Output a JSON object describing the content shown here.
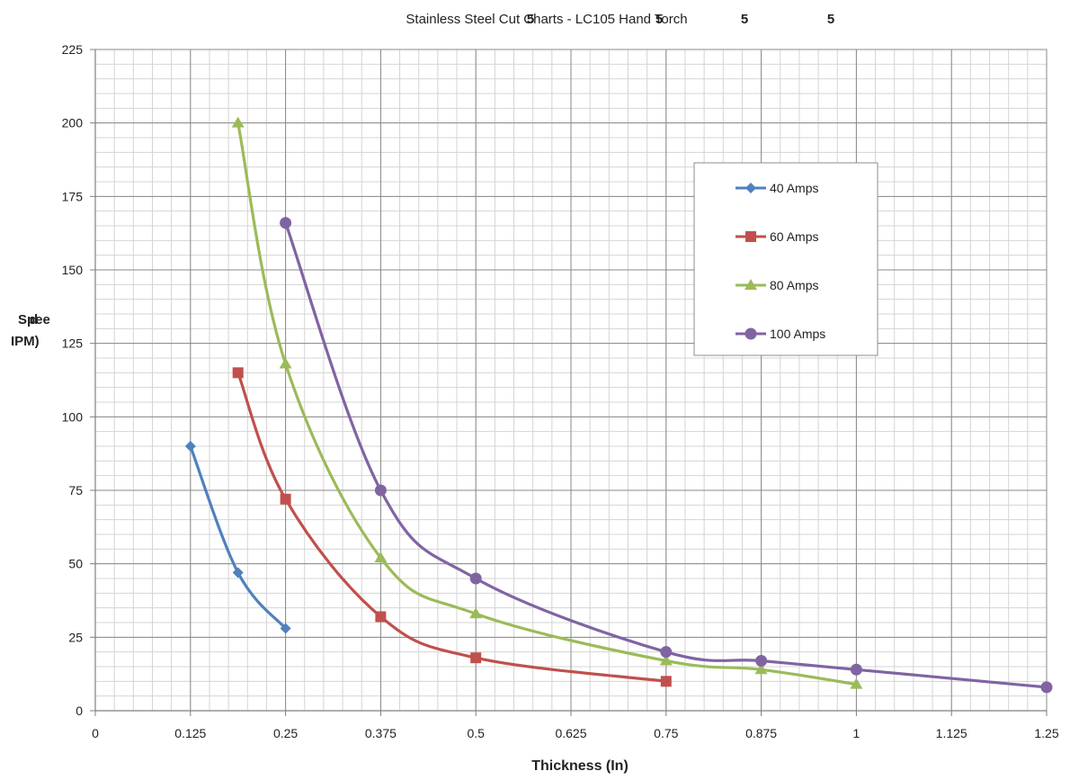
{
  "chart_data": {
    "type": "line",
    "title": "Stainless Steel Cut Charts - LC105 Hand Torch",
    "title_artifacts": [
      "5",
      "5",
      "5",
      "5"
    ],
    "xlabel": "Thickness (In)",
    "ylabel_line1": "Spee",
    "ylabel_line2": "d",
    "ylabel_line3": "IPM)",
    "xlim": [
      0,
      1.25
    ],
    "ylim": [
      0,
      225
    ],
    "x_ticks": [
      0,
      0.125,
      0.25,
      0.375,
      0.5,
      0.625,
      0.75,
      0.875,
      1,
      1.125,
      1.25
    ],
    "x_tick_labels": [
      "0",
      "0.125",
      "0.25",
      "0.375",
      "0.5",
      "0.625",
      "0.75",
      "0.875",
      "1",
      "1.125",
      "1.25"
    ],
    "y_ticks": [
      0,
      25,
      50,
      75,
      100,
      125,
      150,
      175,
      200,
      225
    ],
    "y_tick_labels": [
      "0",
      "25",
      "50",
      "75",
      "100",
      "125",
      "150",
      "175",
      "200",
      "225"
    ],
    "grid": true,
    "legend_position": "right-top",
    "series": [
      {
        "name": "40 Amps",
        "color": "#4f81bd",
        "marker": "diamond",
        "x": [
          0.125,
          0.1875,
          0.25
        ],
        "y": [
          90,
          47,
          28
        ]
      },
      {
        "name": "60 Amps",
        "color": "#c0504d",
        "marker": "square",
        "x": [
          0.1875,
          0.25,
          0.375,
          0.5,
          0.75
        ],
        "y": [
          115,
          72,
          32,
          18,
          10
        ]
      },
      {
        "name": "80 Amps",
        "color": "#9bbb59",
        "marker": "triangle",
        "x": [
          0.1875,
          0.25,
          0.375,
          0.5,
          0.75,
          0.875,
          1
        ],
        "y": [
          200,
          118,
          52,
          33,
          17,
          14,
          9
        ]
      },
      {
        "name": "100 Amps",
        "color": "#8064a2",
        "marker": "circle",
        "x": [
          0.25,
          0.375,
          0.5,
          0.75,
          0.875,
          1,
          1.25
        ],
        "y": [
          166,
          75,
          45,
          20,
          17,
          14,
          8
        ]
      }
    ]
  }
}
